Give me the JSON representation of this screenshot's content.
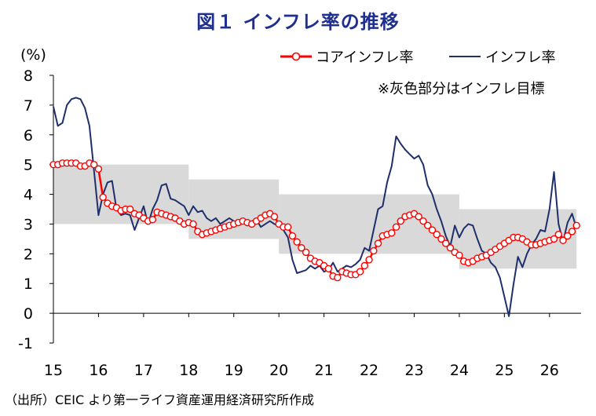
{
  "title": "図１ インフレ率の推移",
  "source": "（出所）CEIC より第一ライフ資産運用経済研究所作成",
  "chart_data": {
    "type": "line",
    "unit_label": "(%)",
    "note": "※灰色部分はインフレ目標",
    "ylim": [
      -1,
      8
    ],
    "yticks": [
      -1,
      0,
      1,
      2,
      3,
      4,
      5,
      6,
      7,
      8
    ],
    "xlim": [
      15.0,
      26.7
    ],
    "xticks": [
      15,
      16,
      17,
      18,
      19,
      20,
      21,
      22,
      23,
      24,
      25,
      26
    ],
    "xtick_labels": [
      "15",
      "16",
      "17",
      "18",
      "19",
      "20",
      "21",
      "22",
      "23",
      "24",
      "25",
      "26"
    ],
    "colors": {
      "core": "#ff0000",
      "inflation": "#1f2f6b",
      "band": "#d9d9d9"
    },
    "target_band": [
      {
        "from": 15.0,
        "to": 18.0,
        "low": 3.0,
        "high": 5.0
      },
      {
        "from": 18.0,
        "to": 20.0,
        "low": 2.5,
        "high": 4.5
      },
      {
        "from": 20.0,
        "to": 24.0,
        "low": 2.0,
        "high": 4.0
      },
      {
        "from": 24.0,
        "to": 26.6,
        "low": 1.5,
        "high": 3.5
      }
    ],
    "series": [
      {
        "name": "コアインフレ率",
        "x": [
          15.0,
          15.1,
          15.2,
          15.3,
          15.4,
          15.5,
          15.6,
          15.7,
          15.8,
          15.9,
          16.0,
          16.1,
          16.2,
          16.3,
          16.4,
          16.5,
          16.6,
          16.7,
          16.8,
          16.9,
          17.0,
          17.1,
          17.2,
          17.3,
          17.4,
          17.5,
          17.6,
          17.7,
          17.8,
          17.9,
          18.0,
          18.1,
          18.2,
          18.3,
          18.4,
          18.5,
          18.6,
          18.7,
          18.8,
          18.9,
          19.0,
          19.1,
          19.2,
          19.3,
          19.4,
          19.5,
          19.6,
          19.7,
          19.8,
          19.9,
          20.0,
          20.1,
          20.2,
          20.3,
          20.4,
          20.5,
          20.6,
          20.7,
          20.8,
          20.9,
          21.0,
          21.1,
          21.2,
          21.3,
          21.4,
          21.5,
          21.6,
          21.7,
          21.8,
          21.9,
          22.0,
          22.1,
          22.2,
          22.3,
          22.4,
          22.5,
          22.6,
          22.7,
          22.8,
          22.9,
          23.0,
          23.1,
          23.2,
          23.3,
          23.4,
          23.5,
          23.6,
          23.7,
          23.8,
          23.9,
          24.0,
          24.1,
          24.2,
          24.3,
          24.4,
          24.5,
          24.6,
          24.7,
          24.8,
          24.9,
          25.0,
          25.1,
          25.2,
          25.3,
          25.4,
          25.5,
          25.6,
          25.7,
          25.8,
          25.9,
          26.0,
          26.1,
          26.2,
          26.3,
          26.4,
          26.5,
          26.6
        ],
        "values": [
          5.0,
          5.0,
          5.05,
          5.05,
          5.05,
          5.05,
          4.95,
          4.95,
          5.05,
          5.0,
          4.85,
          3.9,
          3.7,
          3.6,
          3.55,
          3.45,
          3.5,
          3.5,
          3.35,
          3.3,
          3.2,
          3.1,
          3.15,
          3.4,
          3.35,
          3.3,
          3.25,
          3.2,
          3.1,
          3.0,
          3.05,
          3.0,
          2.75,
          2.65,
          2.7,
          2.75,
          2.8,
          2.85,
          2.9,
          2.95,
          3.0,
          3.05,
          3.1,
          3.05,
          3.0,
          3.1,
          3.2,
          3.3,
          3.35,
          3.25,
          3.0,
          2.9,
          2.9,
          2.6,
          2.4,
          2.2,
          2.05,
          1.85,
          1.75,
          1.7,
          1.6,
          1.5,
          1.25,
          1.2,
          1.4,
          1.35,
          1.3,
          1.3,
          1.4,
          1.6,
          1.8,
          2.1,
          2.35,
          2.6,
          2.65,
          2.7,
          2.9,
          3.1,
          3.25,
          3.3,
          3.35,
          3.25,
          3.1,
          2.95,
          2.8,
          2.65,
          2.5,
          2.35,
          2.2,
          2.05,
          1.95,
          1.75,
          1.7,
          1.75,
          1.85,
          1.9,
          1.95,
          2.05,
          2.15,
          2.25,
          2.35,
          2.45,
          2.55,
          2.55,
          2.5,
          2.4,
          2.3,
          2.3,
          2.35,
          2.4,
          2.45,
          2.5,
          2.65,
          2.45,
          2.6,
          2.75,
          2.95
        ]
      },
      {
        "name": "インフレ率",
        "x": [
          15.0,
          15.1,
          15.2,
          15.3,
          15.4,
          15.5,
          15.6,
          15.7,
          15.8,
          15.9,
          16.0,
          16.1,
          16.2,
          16.3,
          16.4,
          16.5,
          16.6,
          16.7,
          16.8,
          16.9,
          17.0,
          17.1,
          17.2,
          17.3,
          17.4,
          17.5,
          17.6,
          17.7,
          17.8,
          17.9,
          18.0,
          18.1,
          18.2,
          18.3,
          18.4,
          18.5,
          18.6,
          18.7,
          18.8,
          18.9,
          19.0,
          19.1,
          19.2,
          19.3,
          19.4,
          19.5,
          19.6,
          19.7,
          19.8,
          19.9,
          20.0,
          20.1,
          20.2,
          20.3,
          20.4,
          20.5,
          20.6,
          20.7,
          20.8,
          20.9,
          21.0,
          21.1,
          21.2,
          21.3,
          21.4,
          21.5,
          21.6,
          21.7,
          21.8,
          21.9,
          22.0,
          22.1,
          22.2,
          22.3,
          22.4,
          22.5,
          22.6,
          22.7,
          22.8,
          22.9,
          23.0,
          23.1,
          23.2,
          23.3,
          23.4,
          23.5,
          23.6,
          23.7,
          23.8,
          23.9,
          24.0,
          24.1,
          24.2,
          24.3,
          24.4,
          24.5,
          24.6,
          24.7,
          24.8,
          24.9,
          25.0,
          25.1,
          25.2,
          25.3,
          25.4,
          25.5,
          25.6,
          25.7,
          25.8,
          25.9,
          26.0,
          26.1,
          26.2,
          26.3,
          26.4,
          26.5,
          26.6
        ],
        "values": [
          6.95,
          6.3,
          6.4,
          7.0,
          7.2,
          7.25,
          7.2,
          6.9,
          6.3,
          4.8,
          3.3,
          4.0,
          4.4,
          4.45,
          3.5,
          3.3,
          3.35,
          3.3,
          2.8,
          3.2,
          3.6,
          3.0,
          3.5,
          3.8,
          4.3,
          4.35,
          3.85,
          3.8,
          3.7,
          3.6,
          3.3,
          3.6,
          3.4,
          3.45,
          3.2,
          3.1,
          3.2,
          3.0,
          3.1,
          3.2,
          3.1,
          3.0,
          3.05,
          2.95,
          3.1,
          3.15,
          2.9,
          3.0,
          3.1,
          3.0,
          2.95,
          2.8,
          2.55,
          1.8,
          1.35,
          1.4,
          1.45,
          1.6,
          1.5,
          1.6,
          1.4,
          1.45,
          1.7,
          1.4,
          1.5,
          1.6,
          1.55,
          1.65,
          1.8,
          2.2,
          2.1,
          2.8,
          3.5,
          3.6,
          4.4,
          4.95,
          5.95,
          5.7,
          5.5,
          5.35,
          5.2,
          5.3,
          5.0,
          4.3,
          4.0,
          3.5,
          3.1,
          2.6,
          2.25,
          2.95,
          2.55,
          2.85,
          3.0,
          2.95,
          2.5,
          2.1,
          2.0,
          1.7,
          1.55,
          1.2,
          0.55,
          -0.1,
          0.95,
          1.9,
          1.55,
          2.0,
          2.3,
          2.5,
          2.8,
          2.75,
          3.5,
          4.75,
          3.0,
          2.4,
          3.05,
          3.35,
          2.85
        ]
      }
    ]
  }
}
